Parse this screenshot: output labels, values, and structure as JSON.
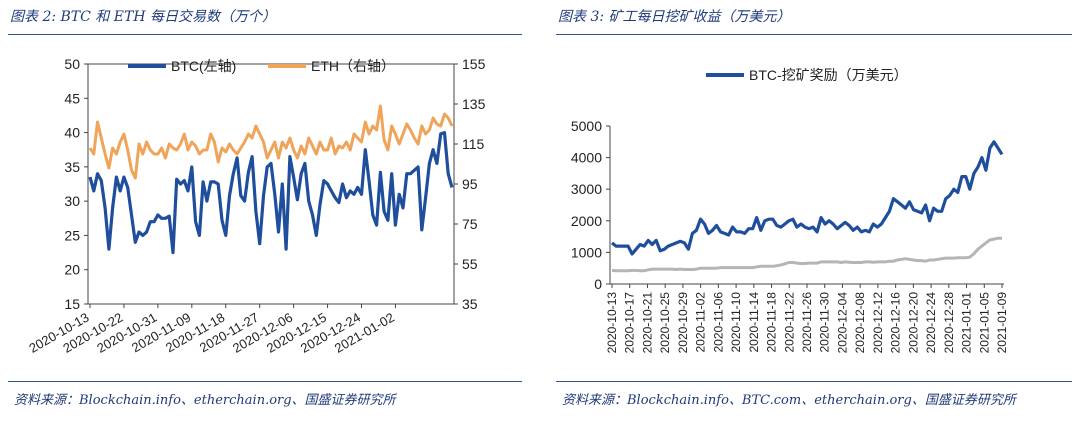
{
  "fig1": {
    "title": "图表 2: BTC 和 ETH 每日交易数（万个）",
    "source": "资料来源：Blockchain.info、etherchain.org、国盛证券研究所",
    "chart_data": {
      "type": "line",
      "left_axis": {
        "min": 15,
        "max": 50,
        "ticks": [
          "15",
          "20",
          "25",
          "30",
          "35",
          "40",
          "45",
          "50"
        ]
      },
      "right_axis": {
        "min": 35,
        "max": 155,
        "ticks": [
          "35",
          "55",
          "75",
          "95",
          "115",
          "135",
          "155"
        ]
      },
      "x_ticks": [
        "2020-10-13",
        "2020-10-22",
        "2020-10-31",
        "2020-11-09",
        "2020-11-18",
        "2020-11-27",
        "2020-12-06",
        "2020-12-15",
        "2020-12-24",
        "2021-01-02"
      ],
      "series": [
        {
          "name": "BTC(左轴)",
          "axis": "left",
          "color": "#1f4e9c",
          "values": [
            33.5,
            31.5,
            34,
            33,
            29,
            23,
            29,
            33.5,
            31.5,
            33.5,
            32,
            28,
            24,
            25.5,
            25,
            25.5,
            27,
            27,
            28,
            27.5,
            27.5,
            27.8,
            22.5,
            33.2,
            32.5,
            33,
            31.5,
            35,
            27,
            25,
            32.8,
            30,
            32.8,
            32.8,
            32.5,
            27.2,
            25,
            30.8,
            34,
            36.3,
            30.8,
            30,
            34.2,
            36.5,
            28.5,
            23.8,
            30.8,
            35,
            35.5,
            31,
            25.5,
            32.5,
            23,
            36.5,
            33.5,
            30.2,
            34,
            35.5,
            30,
            28,
            25,
            29.5,
            33,
            32.5,
            31.5,
            30.5,
            29.8,
            32.5,
            30.5,
            31.5,
            31,
            32,
            31,
            37.5,
            33,
            28,
            26.5,
            34.2,
            28.5,
            27.2,
            34,
            26.5,
            31,
            29,
            34,
            34,
            34.5,
            35,
            25.8,
            30.5,
            35.5,
            37.5,
            35.5,
            39.8,
            40,
            34,
            32
          ]
        },
        {
          "name": "ETH（右轴）",
          "axis": "right",
          "color": "#f0a45a",
          "values": [
            113,
            110,
            126,
            118,
            110,
            103,
            113,
            110,
            116,
            120,
            112,
            102,
            98,
            115,
            110,
            116,
            112,
            110,
            110,
            113,
            108,
            115,
            113,
            112,
            115,
            120,
            112,
            116,
            114,
            110,
            112,
            112,
            120,
            116,
            106,
            113,
            111,
            115,
            112,
            110,
            113,
            116,
            120,
            118,
            124,
            120,
            116,
            108,
            112,
            116,
            108,
            116,
            113,
            118,
            112,
            108,
            114,
            110,
            118,
            114,
            110,
            116,
            112,
            112,
            118,
            110,
            114,
            113,
            116,
            112,
            120,
            118,
            116,
            126,
            120,
            124,
            122,
            134,
            117,
            112,
            124,
            120,
            115,
            120,
            125,
            122,
            118,
            115,
            124,
            120,
            122,
            128,
            125,
            124,
            130,
            128,
            124
          ]
        }
      ]
    }
  },
  "fig2": {
    "title": "图表 3: 矿工每日挖矿收益（万美元）",
    "source": "资料来源：Blockchain.info、BTC.com、etherchain.org、国盛证券研究所",
    "chart_data": {
      "type": "line",
      "y_axis": {
        "min": 0,
        "max": 5000,
        "ticks": [
          "0",
          "1000",
          "2000",
          "3000",
          "4000",
          "5000"
        ]
      },
      "x_ticks": [
        "2020-10-13",
        "2020-10-17",
        "2020-10-21",
        "2020-10-25",
        "2020-10-29",
        "2020-11-02",
        "2020-11-06",
        "2020-11-10",
        "2020-11-14",
        "2020-11-18",
        "2020-11-22",
        "2020-11-26",
        "2020-11-30",
        "2020-12-04",
        "2020-12-08",
        "2020-12-12",
        "2020-12-16",
        "2020-12-20",
        "2020-12-24",
        "2020-12-28",
        "2021-01-01",
        "2021-01-05",
        "2021-01-09"
      ],
      "series": [
        {
          "name": "BTC-挖矿奖励（万美元）",
          "color": "#1f4e9c",
          "values": [
            1300,
            1200,
            1200,
            1200,
            1200,
            950,
            1100,
            1250,
            1200,
            1380,
            1250,
            1380,
            1050,
            1100,
            1200,
            1250,
            1300,
            1350,
            1300,
            1100,
            1600,
            1700,
            2050,
            1900,
            1600,
            1700,
            1850,
            1650,
            1600,
            1550,
            1800,
            1650,
            1650,
            1600,
            1750,
            1750,
            2100,
            1700,
            2000,
            2050,
            2050,
            1850,
            1800,
            1900,
            2000,
            2050,
            1800,
            1900,
            1800,
            1750,
            1800,
            1650,
            2100,
            1900,
            2000,
            1900,
            1750,
            1850,
            1950,
            1850,
            1700,
            1800,
            1650,
            1700,
            1650,
            1900,
            1800,
            1900,
            2100,
            2300,
            2700,
            2600,
            2500,
            2400,
            2600,
            2350,
            2300,
            2250,
            2500,
            2000,
            2400,
            2300,
            2300,
            2700,
            2800,
            3000,
            2900,
            3400,
            3400,
            3000,
            3500,
            3700,
            4000,
            3600,
            4300,
            4500,
            4300,
            4100
          ]
        },
        {
          "name": "",
          "color": "#b5b5b5",
          "values": [
            430,
            420,
            420,
            420,
            420,
            430,
            430,
            420,
            420,
            450,
            470,
            470,
            470,
            470,
            470,
            470,
            460,
            470,
            460,
            460,
            460,
            470,
            500,
            500,
            500,
            500,
            500,
            520,
            520,
            520,
            520,
            520,
            520,
            520,
            520,
            520,
            540,
            560,
            560,
            560,
            560,
            580,
            600,
            640,
            680,
            680,
            660,
            650,
            650,
            660,
            660,
            660,
            700,
            700,
            700,
            700,
            700,
            680,
            700,
            690,
            680,
            680,
            680,
            700,
            700,
            690,
            700,
            700,
            700,
            720,
            720,
            760,
            780,
            800,
            780,
            760,
            740,
            740,
            720,
            760,
            760,
            780,
            800,
            820,
            820,
            820,
            830,
            830,
            830,
            850,
            960,
            1100,
            1200,
            1300,
            1400,
            1420,
            1450,
            1450
          ]
        }
      ]
    }
  }
}
